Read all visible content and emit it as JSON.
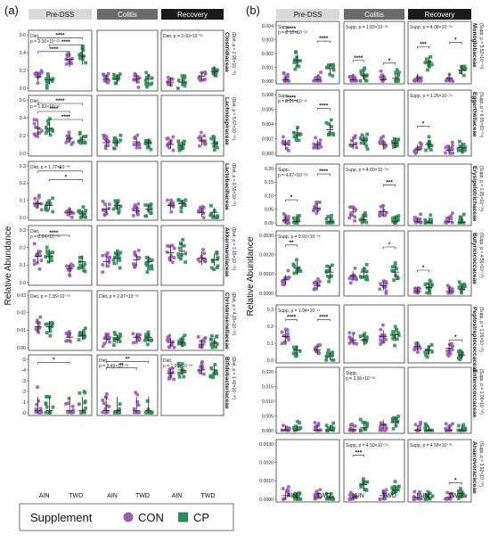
{
  "panels": [
    {
      "label": "(a)",
      "families": [
        "Clostridiaceae",
        "Lachnospiraceae",
        "Lactobacillaceae",
        "Akkermansiaceae",
        "Christensenellaceae",
        "Bifidobacteriaceae"
      ]
    },
    {
      "label": "(b)",
      "families": [
        "Monoglobaceae",
        "Eggerthellaceae",
        "Erysipelotrichaceae",
        "Butyricicoccaceae",
        "Peptostreptococcaceae",
        "Enterococcaceae",
        "Anaerovoracaceae"
      ]
    }
  ],
  "phases": [
    {
      "label": "Pre-DSS",
      "bg": "#d9d9d9",
      "fg": "#111111"
    },
    {
      "label": "Colitis",
      "bg": "#6b6b6b",
      "fg": "#ffffff"
    },
    {
      "label": "Recovery",
      "bg": "#1a1a1a",
      "fg": "#ffffff"
    }
  ],
  "x_labels": [
    "AIN",
    "TWD"
  ],
  "y_axis_title": "Relative Abundance",
  "legend": {
    "title": "Supplement",
    "items": [
      {
        "label": "CON",
        "color": "#9b59b6",
        "shape": "circle"
      },
      {
        "label": "CP",
        "color": "#2e8b57",
        "shape": "square"
      }
    ]
  },
  "colors": {
    "con": "#9b59b6",
    "cp": "#2e8b57"
  },
  "stats": {
    "a": [
      {
        "row": 0,
        "col": 0,
        "text": "Diet,",
        "text2": "p = 2.10×10⁻⁰²"
      },
      {
        "row": 0,
        "col": 2,
        "text": "Diet, p = 3.00×10⁻⁰²"
      },
      {
        "row": 0,
        "col": 3,
        "text": "(Diet, p = 2.95×10⁻⁰³)"
      },
      {
        "row": 1,
        "col": 0,
        "text": "Diet,",
        "text2": "p = 1.83×10⁻¹²"
      },
      {
        "row": 1,
        "col": 3,
        "text": "(Diet, p = 5.67×10⁻⁰⁵)"
      },
      {
        "row": 2,
        "col": 0,
        "text": "Diet, p = 1.77×10⁻⁰⁵"
      },
      {
        "row": 2,
        "col": 3,
        "text": "(Diet, p = 9.55×10⁻⁰³)"
      },
      {
        "row": 3,
        "col": 0,
        "text": "Diet,",
        "text2": "p = 2.64×10⁻⁰⁸"
      },
      {
        "row": 3,
        "col": 3,
        "text": "(Diet, p = 3.15×10⁻⁰³)"
      },
      {
        "row": 4,
        "col": 0,
        "text": "Diet, p = 7.35×10⁻⁰³"
      },
      {
        "row": 4,
        "col": 1,
        "text": "Diet, p = 2.87×10⁻⁰²"
      },
      {
        "row": 4,
        "col": 3,
        "text": "(Diet, p = 4.15×10⁻⁰²)"
      },
      {
        "row": 5,
        "col": 1,
        "text": "Diet,",
        "text2": "p = 3.49×10⁻⁰²"
      },
      {
        "row": 5,
        "col": 2,
        "text": "Diet,",
        "text2": "p = 1.03×10⁻⁰²"
      },
      {
        "row": 5,
        "col": 3,
        "text": "(Diet, p = 1.42×10⁻⁰²)"
      }
    ],
    "b": [
      {
        "row": 0,
        "col": 0,
        "text": "Supp,",
        "text2": "p = 2.10×10⁻⁰²"
      },
      {
        "row": 0,
        "col": 1,
        "text": "Supp, p = 1.83×10⁻⁰²"
      },
      {
        "row": 0,
        "col": 2,
        "text": "Supp, p = 4.08×10⁻⁰⁵"
      },
      {
        "row": 0,
        "col": 3,
        "text": "(Supp, p = 5.52×10⁻⁰⁴)"
      },
      {
        "row": 1,
        "col": 0,
        "text": "Supp,",
        "text2": "p = 9.21×10⁻¹²"
      },
      {
        "row": 1,
        "col": 2,
        "text": "Supp, p = 1.26×10⁻⁰⁴"
      },
      {
        "row": 1,
        "col": 3,
        "text": "(Supp, p = 6.55×10⁻⁰⁴)"
      },
      {
        "row": 2,
        "col": 0,
        "text": "Supp,",
        "text2": "p = 4.67×10⁻⁰⁶"
      },
      {
        "row": 2,
        "col": 1,
        "text": "Supp, p = 4.60×10⁻⁰⁵"
      },
      {
        "row": 2,
        "col": 3,
        "text": "(Supp, p = 1.95×10⁻⁰³)"
      },
      {
        "row": 3,
        "col": 0,
        "text": "Supp, p = 9.91×10⁻⁰⁵"
      },
      {
        "row": 3,
        "col": 3,
        "text": "(Supp, p = 4.56×10⁻⁰²)"
      },
      {
        "row": 4,
        "col": 0,
        "text": "Supp, p = 1.94×10⁻¹¹"
      },
      {
        "row": 4,
        "col": 3,
        "text": "(Supp, p = 1.26×10⁻⁰²)"
      },
      {
        "row": 5,
        "col": 1,
        "text": "Supp,",
        "text2": "p = 3.66×10⁻⁰²"
      },
      {
        "row": 5,
        "col": 3,
        "text": "(Supp, p = 1.08×10⁻⁰²)"
      },
      {
        "row": 6,
        "col": 1,
        "text": "Supp, p = 4.50×10⁻⁰⁴"
      },
      {
        "row": 6,
        "col": 2,
        "text": "Supp, p = 4.58×10⁻⁰²"
      },
      {
        "row": 6,
        "col": 3,
        "text": "(Supp, p = 3.92×10⁻⁰²)"
      }
    ]
  },
  "chart_data": [
    {
      "type": "scatter",
      "panel": "(a)",
      "columns": [
        "Pre-DSS",
        "Colitis",
        "Recovery"
      ],
      "x_groups": [
        "AIN",
        "TWD"
      ],
      "series": [
        {
          "name": "CON"
        },
        {
          "name": "CP"
        }
      ],
      "rows": [
        {
          "family": "Clostridiaceae",
          "ylim": [
            0,
            0.7
          ],
          "ticks": [
            "0.0",
            "0.2",
            "0.4",
            "0.6"
          ],
          "medians": [
            [
              0.15,
              0.11,
              0.38,
              0.42
            ],
            [
              0.12,
              0.12,
              0.12,
              0.12
            ],
            [
              0.08,
              0.08,
              0.16,
              0.22
            ]
          ],
          "brackets": [
            {
              "col": 0,
              "g1": 0,
              "g2": 3,
              "stars": "****",
              "y": 0.66
            },
            {
              "col": 0,
              "g1": 1,
              "g2": 3,
              "stars": "****",
              "y": 0.57
            },
            {
              "col": 0,
              "g1": 0,
              "g2": 2,
              "stars": "****",
              "y": 0.48
            }
          ]
        },
        {
          "family": "Lachnospiraceae",
          "ylim": [
            0,
            0.6
          ],
          "ticks": [
            "0.0",
            "0.2",
            "0.4",
            "0.6"
          ],
          "medians": [
            [
              0.28,
              0.28,
              0.17,
              0.15
            ],
            [
              0.12,
              0.12,
              0.13,
              0.12
            ],
            [
              0.1,
              0.09,
              0.14,
              0.11
            ]
          ],
          "brackets": [
            {
              "col": 0,
              "g1": 0,
              "g2": 3,
              "stars": "****",
              "y": 0.56
            },
            {
              "col": 0,
              "g1": 0,
              "g2": 2,
              "stars": "****",
              "y": 0.47
            },
            {
              "col": 0,
              "g1": 1,
              "g2": 3,
              "stars": "****",
              "y": 0.38
            }
          ]
        },
        {
          "family": "Lactobacillaceae",
          "ylim": [
            0,
            0.3
          ],
          "ticks": [
            "0.0",
            "0.1",
            "0.2",
            "0.3"
          ],
          "medians": [
            [
              0.08,
              0.07,
              0.03,
              0.02
            ],
            [
              0.05,
              0.07,
              0.04,
              0.05
            ],
            [
              0.07,
              0.08,
              0.03,
              0.03
            ]
          ],
          "brackets": [
            {
              "col": 0,
              "g1": 0,
              "g2": 3,
              "stars": "*",
              "y": 0.27
            },
            {
              "col": 0,
              "g1": 1,
              "g2": 3,
              "stars": "*",
              "y": 0.22
            }
          ]
        },
        {
          "family": "Akkermansiaceae",
          "ylim": [
            0,
            0.3
          ],
          "ticks": [
            "0.0",
            "0.1",
            "0.2",
            "0.3"
          ],
          "medians": [
            [
              0.15,
              0.15,
              0.08,
              0.12
            ],
            [
              0.12,
              0.14,
              0.13,
              0.12
            ],
            [
              0.17,
              0.18,
              0.14,
              0.13
            ]
          ],
          "brackets": [
            {
              "col": 0,
              "g1": 0,
              "g2": 2,
              "stars": "****",
              "y": 0.27
            }
          ]
        },
        {
          "family": "Christensenellaceae",
          "ylim": [
            0,
            0.03
          ],
          "ticks": [
            "0.00",
            "0.01",
            "0.02",
            "0.03"
          ],
          "medians": [
            [
              0.012,
              0.012,
              0.006,
              0.007
            ],
            [
              0.005,
              0.005,
              0.006,
              0.006
            ],
            [
              0.003,
              0.003,
              0.002,
              0.003
            ]
          ],
          "brackets": []
        },
        {
          "family": "Bifidobacteriaceae",
          "ylim": [
            -5,
            0
          ],
          "ticks": [
            "-0",
            "-1",
            "-2",
            "-3",
            "-4",
            "-5"
          ],
          "medians": [
            [
              -4.8,
              -4.8,
              -4.8,
              -4.8
            ],
            [
              -4.8,
              -4.8,
              -4.8,
              -4.8
            ],
            [
              -1.3,
              -1.0,
              -1.0,
              -1.0
            ]
          ],
          "brackets": [
            {
              "col": 0,
              "g1": 0,
              "g2": 2,
              "stars": "*",
              "y": -0.3
            },
            {
              "col": 1,
              "g1": 0,
              "g2": 3,
              "stars": "**",
              "y": -0.2
            },
            {
              "col": 1,
              "g1": 0,
              "g2": 2,
              "stars": "**",
              "y": -0.8
            }
          ]
        }
      ]
    },
    {
      "type": "scatter",
      "panel": "(b)",
      "columns": [
        "Pre-DSS",
        "Colitis",
        "Recovery"
      ],
      "x_groups": [
        "AIN",
        "TWD"
      ],
      "series": [
        {
          "name": "CON"
        },
        {
          "name": "CP"
        }
      ],
      "rows": [
        {
          "family": "Monoglobaceae",
          "ylim": [
            0,
            0.004
          ],
          "ticks": [
            "0.000",
            "0.001",
            "0.002",
            "0.003",
            "0.004"
          ],
          "medians": [
            [
              0.0001,
              0.0015,
              0.0001,
              0.0009
            ],
            [
              0.0001,
              0.0004,
              0.0001,
              0.0002
            ],
            [
              0.0002,
              0.0014,
              0.0002,
              0.0008
            ]
          ],
          "brackets": [
            {
              "col": 0,
              "g1": 0,
              "g2": 1,
              "stars": "****",
              "y": 0.0036
            },
            {
              "col": 0,
              "g1": 2,
              "g2": 3,
              "stars": "****",
              "y": 0.0029
            },
            {
              "col": 1,
              "g1": 0,
              "g2": 1,
              "stars": "****",
              "y": 0.0015
            },
            {
              "col": 1,
              "g1": 2,
              "g2": 3,
              "stars": "*",
              "y": 0.0013
            },
            {
              "col": 2,
              "g1": 0,
              "g2": 1,
              "stars": "***",
              "y": 0.0025
            },
            {
              "col": 2,
              "g1": 2,
              "g2": 3,
              "stars": "*",
              "y": 0.0028
            }
          ]
        },
        {
          "family": "Eggerthellaceae",
          "ylim": [
            0,
            0.008
          ],
          "ticks": [
            "0.000",
            "0.002",
            "0.004",
            "0.006",
            "0.008"
          ],
          "medians": [
            [
              0.0012,
              0.0028,
              0.0012,
              0.0032
            ],
            [
              0.0012,
              0.0018,
              0.0012,
              0.0014
            ],
            [
              0.0005,
              0.0012,
              0.0004,
              0.0008
            ]
          ],
          "brackets": [
            {
              "col": 0,
              "g1": 0,
              "g2": 1,
              "stars": "****",
              "y": 0.0072
            },
            {
              "col": 0,
              "g1": 2,
              "g2": 3,
              "stars": "****",
              "y": 0.0061
            },
            {
              "col": 2,
              "g1": 0,
              "g2": 1,
              "stars": "*",
              "y": 0.0037
            }
          ]
        },
        {
          "family": "Erysipelotrichaceae",
          "ylim": [
            0,
            0.2
          ],
          "ticks": [
            "0.00",
            "0.05",
            "0.10",
            "0.15",
            "0.20"
          ],
          "medians": [
            [
              0.01,
              0.005,
              0.055,
              0.004
            ],
            [
              0.04,
              0.012,
              0.04,
              0.006
            ],
            [
              0.004,
              0.002,
              0.004,
              0.002
            ]
          ],
          "brackets": [
            {
              "col": 0,
              "g1": 0,
              "g2": 1,
              "stars": "*",
              "y": 0.085
            },
            {
              "col": 0,
              "g1": 2,
              "g2": 3,
              "stars": "****",
              "y": 0.18
            },
            {
              "col": 1,
              "g1": 2,
              "g2": 3,
              "stars": "***",
              "y": 0.14
            }
          ]
        },
        {
          "family": "Butyricicoccaceae",
          "ylim": [
            0,
            0.003
          ],
          "ticks": [
            "0.0000",
            "0.0010",
            "0.0020",
            "0.0030"
          ],
          "medians": [
            [
              0.0007,
              0.0013,
              0.0004,
              0.0011
            ],
            [
              0.0009,
              0.0011,
              0.0004,
              0.0011
            ],
            [
              0.0001,
              0.0003,
              0.0001,
              0.0002
            ]
          ],
          "brackets": [
            {
              "col": 0,
              "g1": 0,
              "g2": 1,
              "stars": "**",
              "y": 0.0025
            },
            {
              "col": 1,
              "g1": 2,
              "g2": 3,
              "stars": "*",
              "y": 0.0024
            },
            {
              "col": 2,
              "g1": 0,
              "g2": 1,
              "stars": "*",
              "y": 0.0012
            }
          ]
        },
        {
          "family": "Peptostreptococcaceae",
          "ylim": [
            0,
            0.3
          ],
          "ticks": [
            "0.0",
            "0.1",
            "0.2",
            "0.3"
          ],
          "medians": [
            [
              0.14,
              0.06,
              0.06,
              0.02
            ],
            [
              0.12,
              0.12,
              0.14,
              0.15
            ],
            [
              0.08,
              0.06,
              0.07,
              0.03
            ]
          ],
          "brackets": [
            {
              "col": 0,
              "g1": 0,
              "g2": 1,
              "stars": "****",
              "y": 0.24
            },
            {
              "col": 0,
              "g1": 2,
              "g2": 3,
              "stars": "****",
              "y": 0.24
            },
            {
              "col": 2,
              "g1": 2,
              "g2": 3,
              "stars": "*",
              "y": 0.12
            }
          ]
        },
        {
          "family": "Enterococcaceae",
          "ylim": [
            0,
            0.02
          ],
          "ticks": [
            "0.000",
            "0.005",
            "0.010",
            "0.015",
            "0.020"
          ],
          "medians": [
            [
              0.0002,
              0.0002,
              0.0002,
              0.0002
            ],
            [
              0.0003,
              0.001,
              0.002,
              0.003
            ],
            [
              0.0001,
              0.0001,
              0.0001,
              0.0001
            ]
          ],
          "brackets": []
        },
        {
          "family": "Anaerovoracaceae",
          "ylim": [
            0,
            0.003
          ],
          "ticks": [
            "0.0000",
            "0.0010",
            "0.0020",
            "0.0030"
          ],
          "medians": [
            [
              0.0002,
              0.0001,
              0.0001,
              0.0001
            ],
            [
              0.0001,
              0.0008,
              0.0002,
              0.0005
            ],
            [
              0.0001,
              0.0001,
              0.0001,
              0.0003
            ]
          ],
          "brackets": [
            {
              "col": 1,
              "g1": 0,
              "g2": 1,
              "stars": "***",
              "y": 0.0024
            },
            {
              "col": 2,
              "g1": 2,
              "g2": 3,
              "stars": "*",
              "y": 0.0009
            }
          ]
        }
      ]
    }
  ]
}
